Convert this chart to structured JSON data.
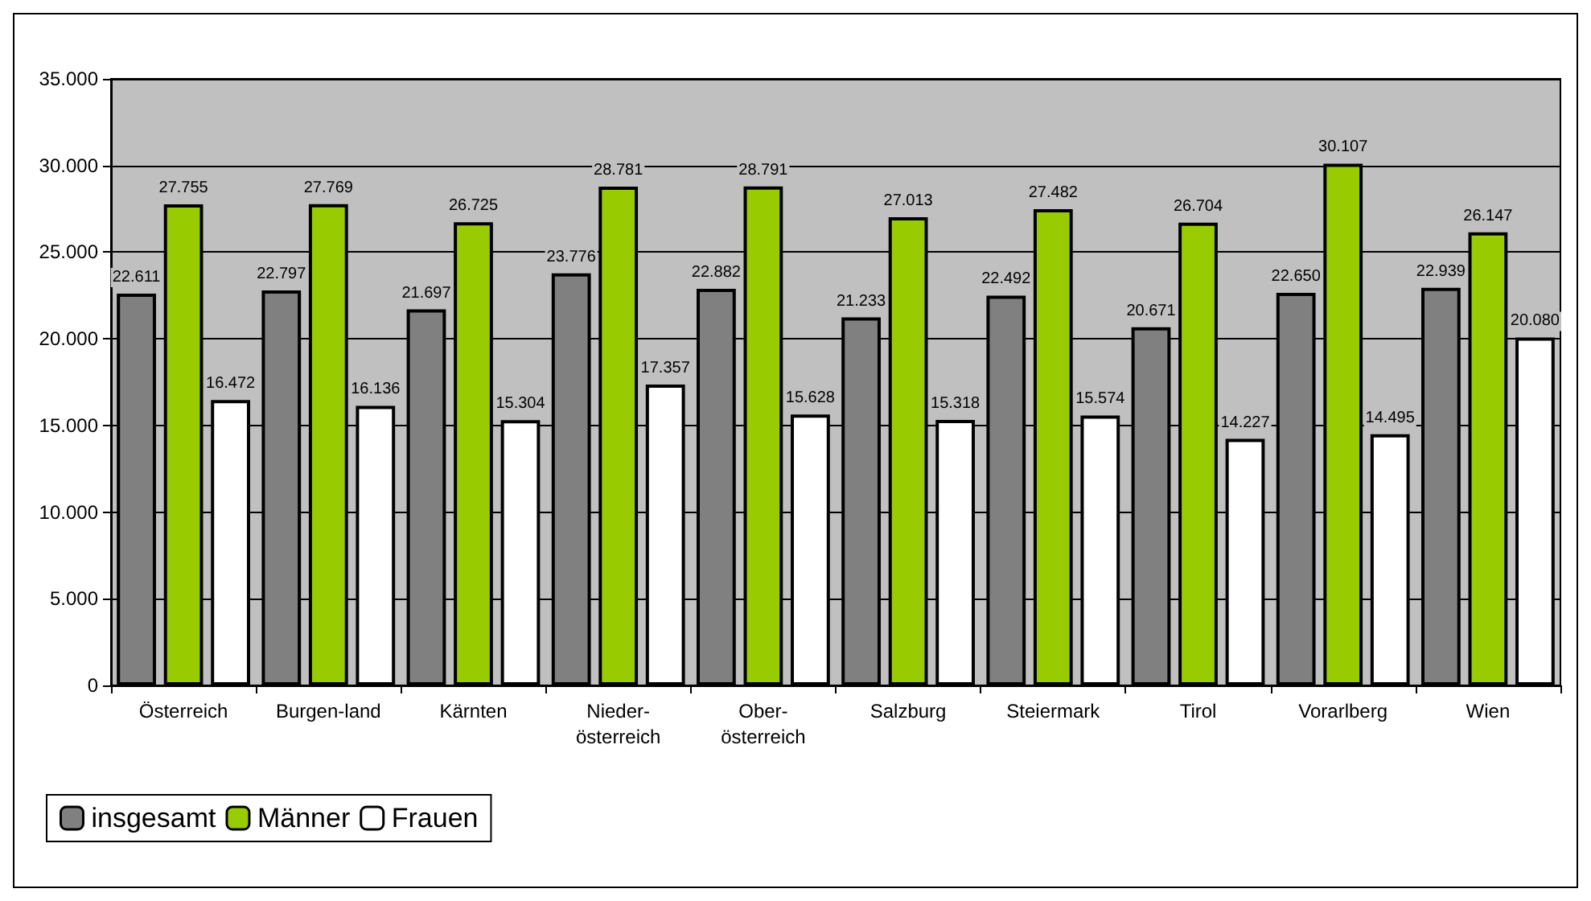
{
  "chart_data": {
    "type": "bar",
    "categories": [
      "Österreich",
      "Burgen-land",
      "Kärnten",
      "Nieder-\nösterreich",
      "Ober-\nösterreich",
      "Salzburg",
      "Steiermark",
      "Tirol",
      "Vorarlberg",
      "Wien"
    ],
    "series": [
      {
        "name": "insgesamt",
        "color": "#808080",
        "values": [
          22611,
          22797,
          21697,
          23776,
          22882,
          21233,
          22492,
          20671,
          22650,
          22939
        ],
        "value_labels": [
          "22.611",
          "22.797",
          "21.697",
          "23.776",
          "22.882",
          "21.233",
          "22.492",
          "20.671",
          "22.650",
          "22.939"
        ]
      },
      {
        "name": "Männer",
        "color": "#99cc00",
        "values": [
          27755,
          27769,
          26725,
          28781,
          28791,
          27013,
          27482,
          26704,
          30107,
          26147
        ],
        "value_labels": [
          "27.755",
          "27.769",
          "26.725",
          "28.781",
          "28.791",
          "27.013",
          "27.482",
          "26.704",
          "30.107",
          "26.147"
        ]
      },
      {
        "name": "Frauen",
        "color": "#ffffff",
        "values": [
          16472,
          16136,
          15304,
          17357,
          15628,
          15318,
          15574,
          14227,
          14495,
          20080
        ],
        "value_labels": [
          "16.472",
          "16.136",
          "15.304",
          "17.357",
          "15.628",
          "15.318",
          "15.574",
          "14.227",
          "14.495",
          "20.080"
        ]
      }
    ],
    "ylim": [
      0,
      35000
    ],
    "yticks": [
      0,
      {
        "value": 5000,
        "label": "5.000"
      },
      {
        "value": 10000,
        "label": "10.000"
      },
      {
        "value": 15000,
        "label": "15.000"
      },
      {
        "value": 20000,
        "label": "20.000"
      },
      {
        "value": 25000,
        "label": "25.000"
      },
      {
        "value": 30000,
        "label": "30.000"
      },
      {
        "value": 35000,
        "label": "35.000"
      }
    ],
    "grid": "y",
    "legend": "bottom left"
  }
}
